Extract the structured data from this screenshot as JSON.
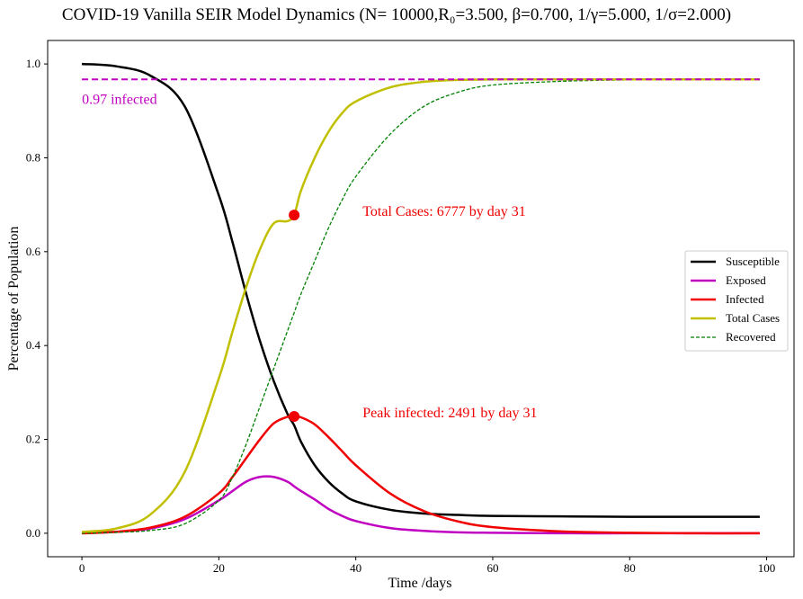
{
  "chart_data": {
    "type": "line",
    "title": "COVID-19 Vanilla SEIR Model Dynamics (N= 10000,R₀=3.500, β=0.700, 1/γ=5.000, 1/σ=2.000)",
    "xlabel": "Time /days",
    "ylabel": "Percentage of Population",
    "xlim": [
      -5,
      104
    ],
    "ylim": [
      -0.05,
      1.05
    ],
    "xticks": [
      0,
      20,
      40,
      60,
      80,
      100
    ],
    "xtick_labels": [
      "0",
      "20",
      "40",
      "60",
      "80",
      "100"
    ],
    "yticks": [
      0.0,
      0.2,
      0.4,
      0.6,
      0.8,
      1.0
    ],
    "ytick_labels": [
      "0.0",
      "0.2",
      "0.4",
      "0.6",
      "0.8",
      "1.0"
    ],
    "grid": false,
    "legend_position": "center-right",
    "x": [
      0,
      5,
      10,
      15,
      20,
      22,
      24,
      26,
      28,
      30,
      31,
      32,
      34,
      36,
      38,
      40,
      45,
      50,
      55,
      60,
      70,
      80,
      90,
      99
    ],
    "series": [
      {
        "name": "Susceptible",
        "color": "#000000",
        "style": "solid",
        "values": [
          1.0,
          0.995,
          0.975,
          0.91,
          0.72,
          0.62,
          0.51,
          0.41,
          0.325,
          0.255,
          0.23,
          0.195,
          0.145,
          0.11,
          0.085,
          0.068,
          0.05,
          0.042,
          0.039,
          0.037,
          0.036,
          0.035,
          0.035,
          0.035
        ]
      },
      {
        "name": "Exposed",
        "color": "#c000c0",
        "style": "solid",
        "values": [
          0.0,
          0.003,
          0.01,
          0.03,
          0.07,
          0.09,
          0.11,
          0.12,
          0.12,
          0.11,
          0.1,
          0.09,
          0.072,
          0.052,
          0.037,
          0.026,
          0.011,
          0.005,
          0.002,
          0.001,
          0.0,
          0.0,
          0.0,
          0.0
        ]
      },
      {
        "name": "Infected",
        "color": "#f00000",
        "style": "solid",
        "values": [
          0.0,
          0.003,
          0.012,
          0.035,
          0.085,
          0.12,
          0.16,
          0.2,
          0.234,
          0.248,
          0.249,
          0.247,
          0.232,
          0.205,
          0.175,
          0.145,
          0.085,
          0.047,
          0.025,
          0.013,
          0.004,
          0.001,
          0.0,
          0.0
        ]
      },
      {
        "name": "Total Cases",
        "color": "#c0c000",
        "style": "solid",
        "values": [
          0.003,
          0.01,
          0.04,
          0.13,
          0.33,
          0.43,
          0.525,
          0.605,
          0.66,
          0.665,
          0.678,
          0.73,
          0.8,
          0.855,
          0.895,
          0.92,
          0.95,
          0.962,
          0.966,
          0.967,
          0.967,
          0.967,
          0.967,
          0.967
        ]
      },
      {
        "name": "Recovered",
        "color": "#008000",
        "style": "dashed",
        "values": [
          0.0,
          0.002,
          0.006,
          0.02,
          0.07,
          0.12,
          0.19,
          0.27,
          0.35,
          0.43,
          0.47,
          0.51,
          0.58,
          0.65,
          0.71,
          0.76,
          0.85,
          0.91,
          0.94,
          0.955,
          0.963,
          0.966,
          0.967,
          0.967
        ]
      }
    ],
    "hline": {
      "y": 0.967,
      "color": "#c000c0",
      "label": "0.97 infected"
    },
    "markers": [
      {
        "x": 31,
        "y": 0.678,
        "color": "#f00000",
        "label": "Total Cases: 6777 by day 31"
      },
      {
        "x": 31,
        "y": 0.249,
        "color": "#f00000",
        "label": "Peak infected: 2491 by day 31"
      }
    ]
  }
}
